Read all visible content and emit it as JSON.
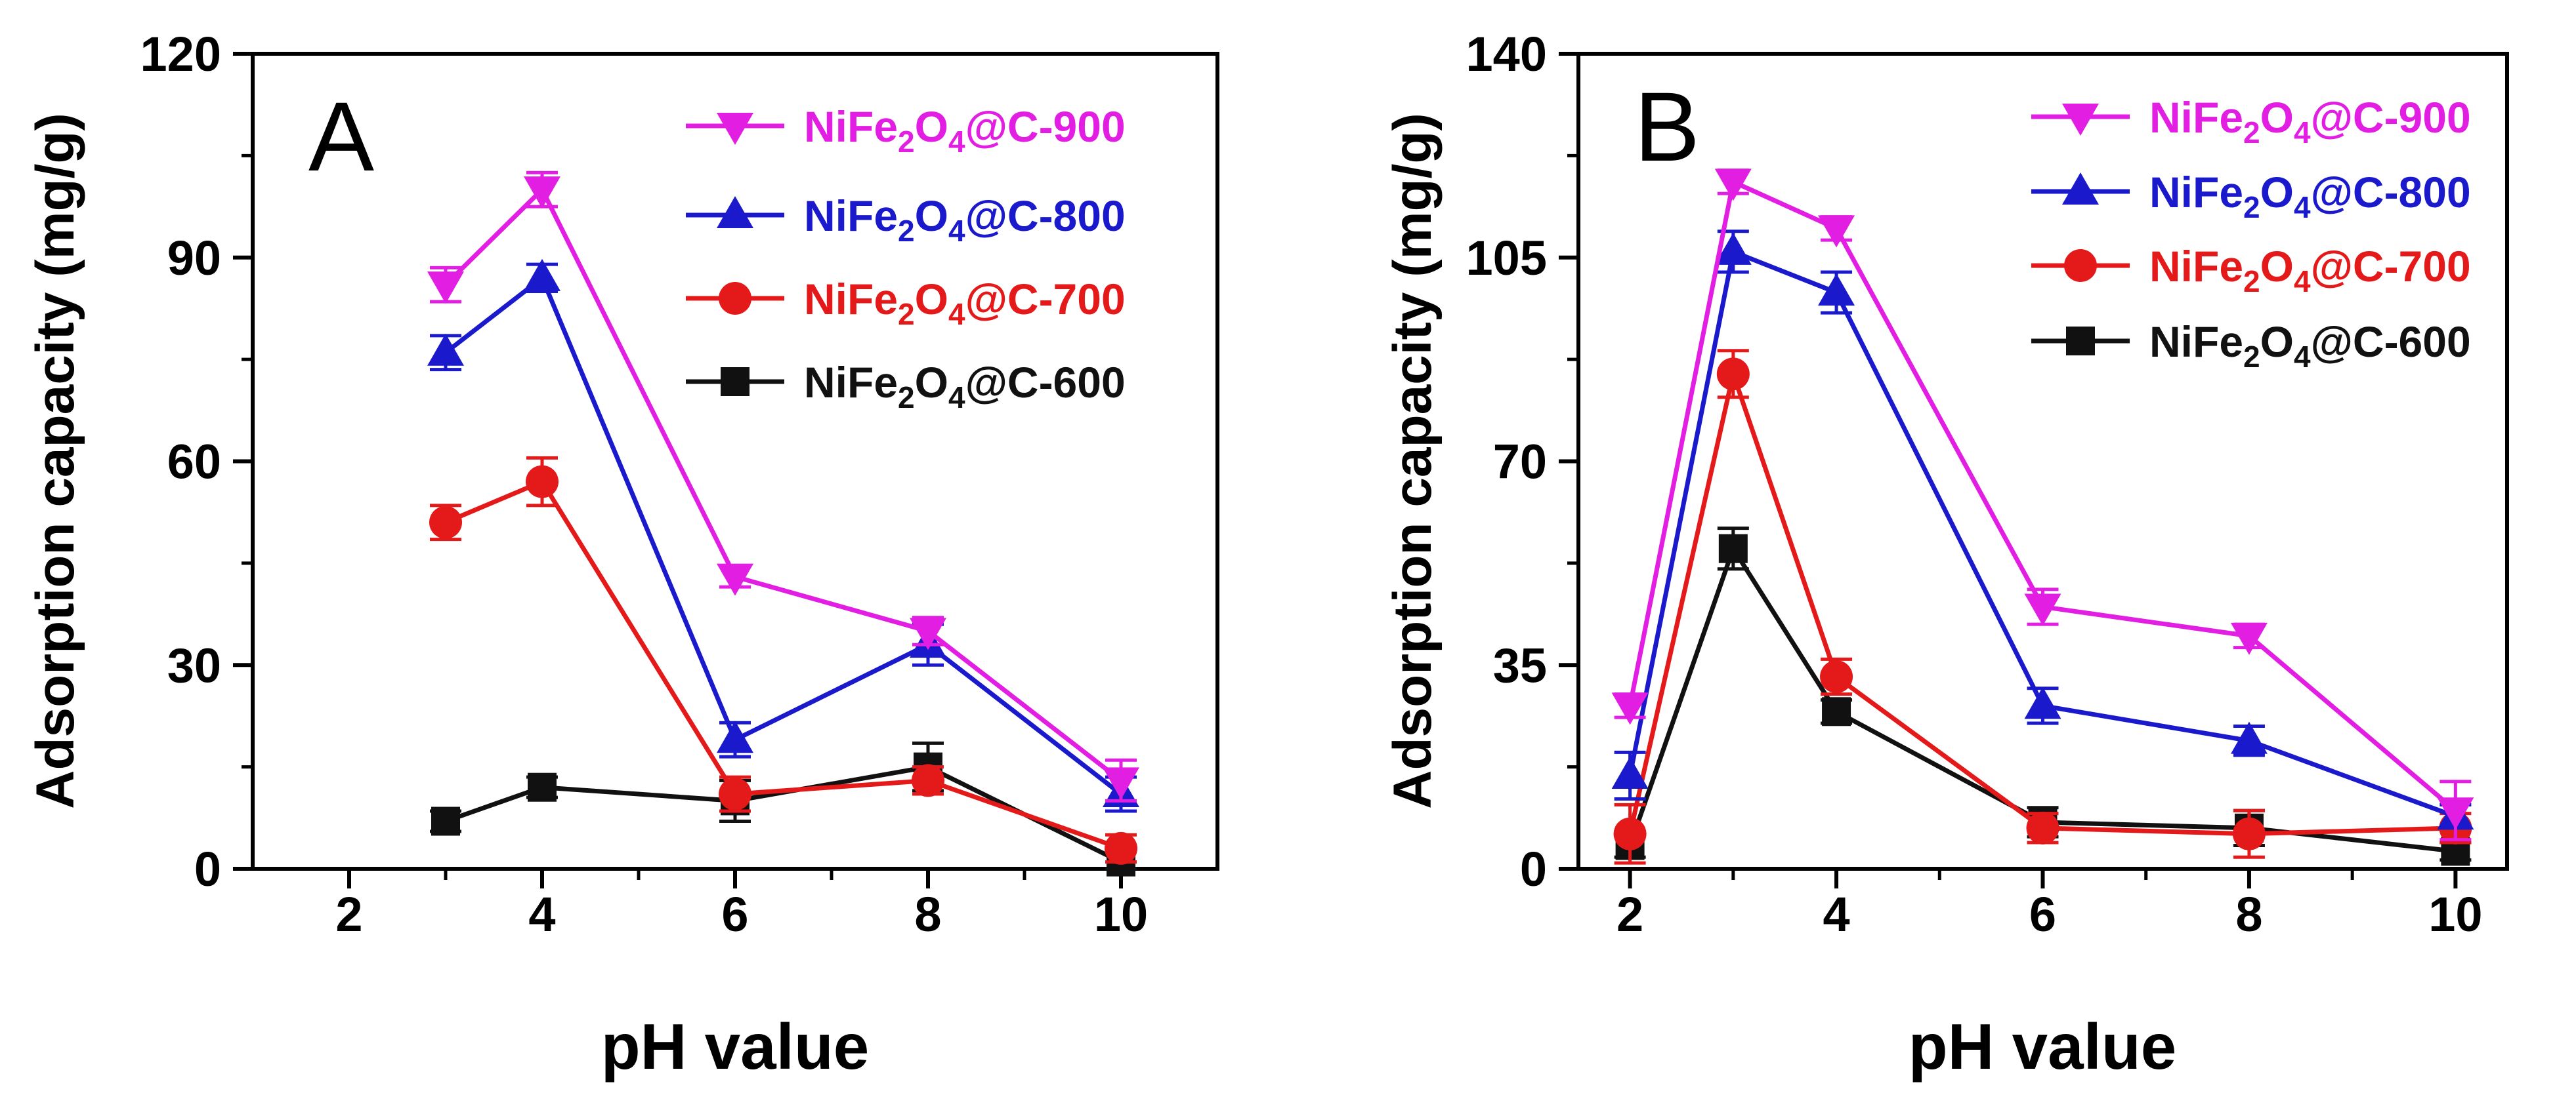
{
  "chart_data": [
    {
      "type": "line",
      "panel_label": "A",
      "xlabel": "pH value",
      "ylabel": "Adsorption capacity (mg/g)",
      "xlim": [
        1,
        11
      ],
      "ylim": [
        0,
        120
      ],
      "xticks": [
        2,
        4,
        6,
        8,
        10
      ],
      "yticks": [
        0,
        30,
        60,
        90,
        120
      ],
      "x": [
        3,
        4,
        6,
        8,
        10
      ],
      "legend_position": "top-right",
      "series": [
        {
          "name": "NiFe2O4@C-900",
          "label_parts": [
            "NiFe",
            "2",
            "O",
            "4",
            "@C-900"
          ],
          "color": "#e31ee3",
          "marker": "triangle-down",
          "values": [
            86,
            100,
            43,
            35,
            13
          ],
          "errors": [
            2.5,
            2.5,
            1.5,
            2.0,
            3.0
          ]
        },
        {
          "name": "NiFe2O4@C-800",
          "label_parts": [
            "NiFe",
            "2",
            "O",
            "4",
            "@C-800"
          ],
          "color": "#1a1acc",
          "marker": "triangle-up",
          "values": [
            76,
            87,
            19,
            33,
            11
          ],
          "errors": [
            2.5,
            2.0,
            2.5,
            3.0,
            2.5
          ]
        },
        {
          "name": "NiFe2O4@C-700",
          "label_parts": [
            "NiFe",
            "2",
            "O",
            "4",
            "@C-700"
          ],
          "color": "#e41a1a",
          "marker": "circle",
          "values": [
            51,
            57,
            11,
            13,
            3
          ],
          "errors": [
            2.5,
            3.5,
            2.5,
            2.0,
            2.0
          ]
        },
        {
          "name": "NiFe2O4@C-600",
          "label_parts": [
            "NiFe",
            "2",
            "O",
            "4",
            "@C-600"
          ],
          "color": "#111111",
          "marker": "square",
          "values": [
            7,
            12,
            10,
            15,
            1
          ],
          "errors": [
            1.5,
            1.5,
            3.0,
            3.5,
            1.5
          ]
        }
      ]
    },
    {
      "type": "line",
      "panel_label": "B",
      "xlabel": "pH value",
      "ylabel": "Adsorption capacity (mg/g)",
      "xlim": [
        1.5,
        10.5
      ],
      "ylim": [
        0,
        140
      ],
      "xticks": [
        2,
        4,
        6,
        8,
        10
      ],
      "yticks": [
        0,
        35,
        70,
        105,
        140
      ],
      "x": [
        2,
        3,
        4,
        6,
        8,
        10
      ],
      "legend_position": "top-right",
      "series": [
        {
          "name": "NiFe2O4@C-900",
          "label_parts": [
            "NiFe",
            "2",
            "O",
            "4",
            "@C-900"
          ],
          "color": "#e31ee3",
          "marker": "triangle-down",
          "values": [
            28,
            118,
            110,
            45,
            40,
            10
          ],
          "errors": [
            2.0,
            2.0,
            2.0,
            3.0,
            2.0,
            5.0
          ]
        },
        {
          "name": "NiFe2O4@C-800",
          "label_parts": [
            "NiFe",
            "2",
            "O",
            "4",
            "@C-800"
          ],
          "color": "#1a1acc",
          "marker": "triangle-up",
          "values": [
            16,
            106,
            99,
            28,
            22,
            9
          ],
          "errors": [
            4.0,
            3.5,
            3.5,
            3.0,
            2.5,
            2.0
          ]
        },
        {
          "name": "NiFe2O4@C-700",
          "label_parts": [
            "NiFe",
            "2",
            "O",
            "4",
            "@C-700"
          ],
          "color": "#e41a1a",
          "marker": "circle",
          "values": [
            6,
            85,
            33,
            7,
            6,
            7
          ],
          "errors": [
            5.0,
            4.0,
            3.0,
            2.5,
            4.0,
            2.5
          ]
        },
        {
          "name": "NiFe2O4@C-600",
          "label_parts": [
            "NiFe",
            "2",
            "O",
            "4",
            "@C-600"
          ],
          "color": "#111111",
          "marker": "square",
          "values": [
            4,
            55,
            27,
            8,
            7,
            3
          ],
          "errors": [
            2.0,
            3.5,
            2.0,
            2.5,
            3.0,
            1.5
          ]
        }
      ]
    }
  ]
}
